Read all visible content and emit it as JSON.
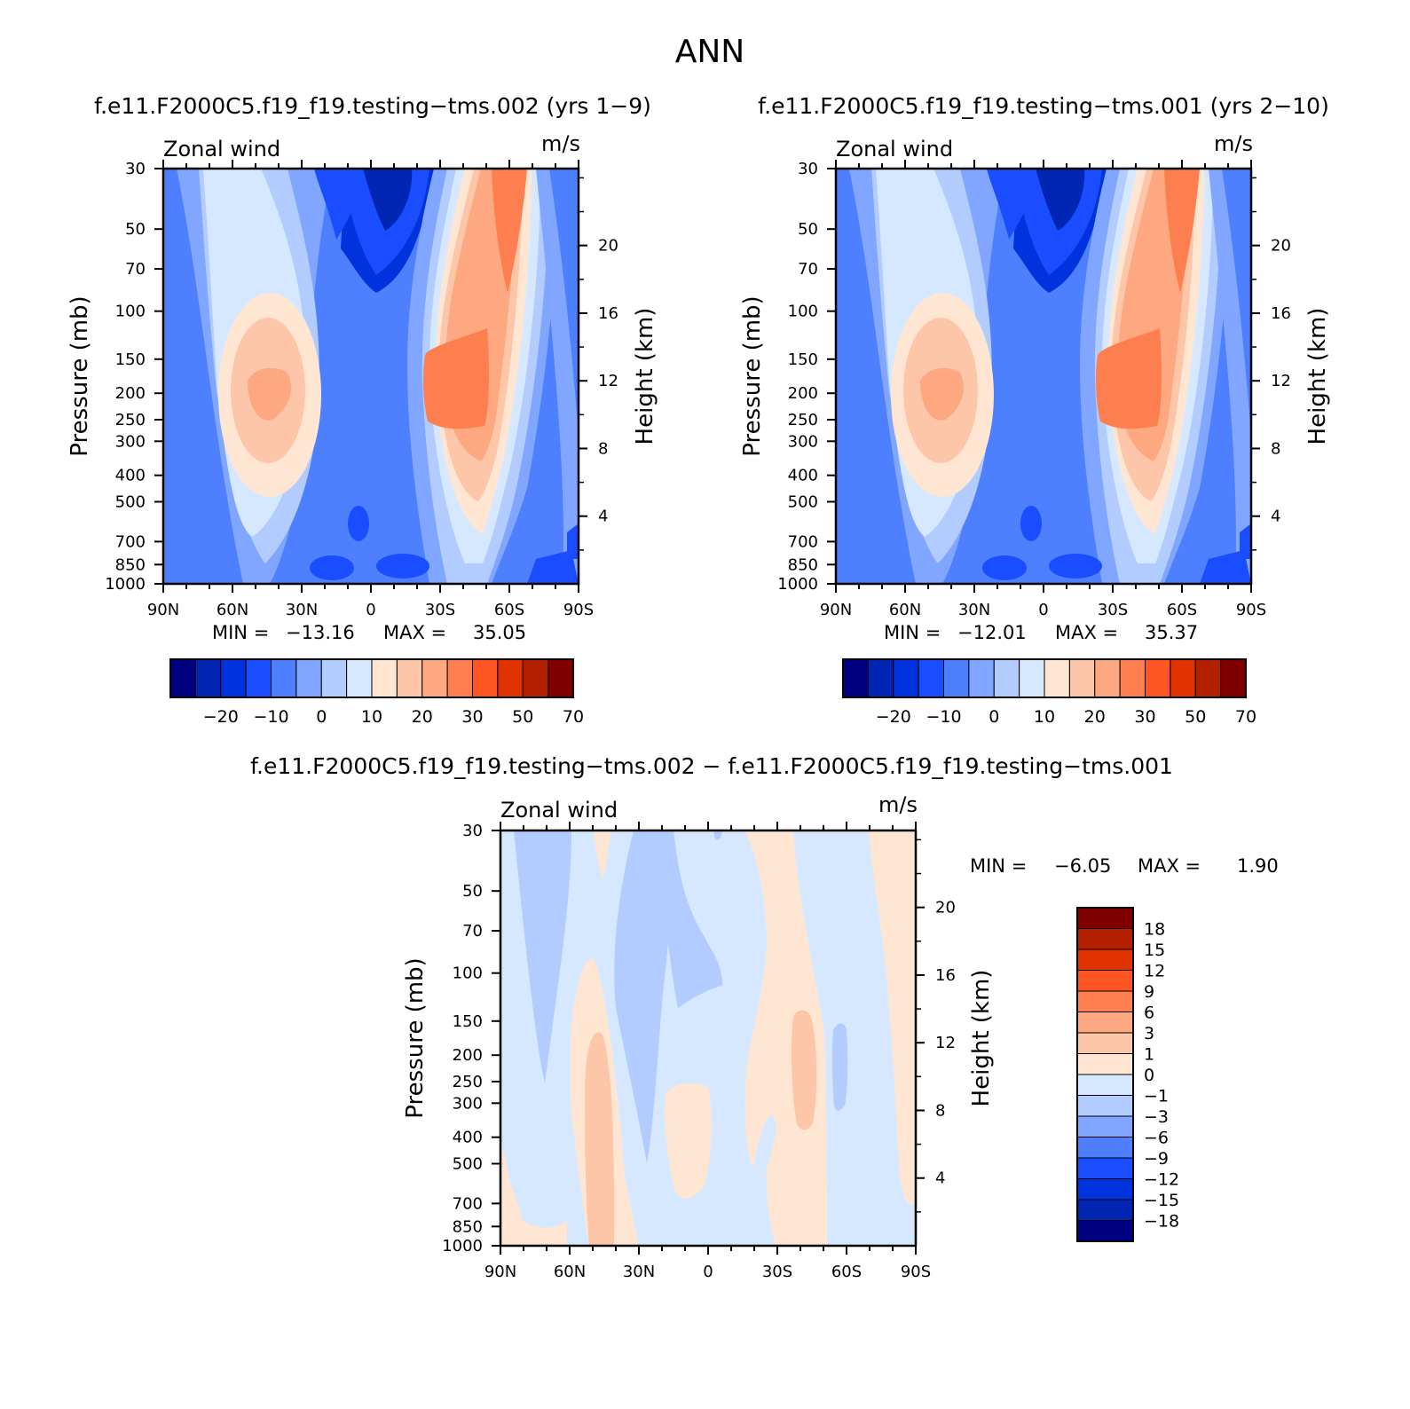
{
  "figure": {
    "title": "ANN"
  },
  "colors": {
    "ctl": [
      "#000080",
      "#0026b3",
      "#0033dd",
      "#1a4dff",
      "#4d7fff",
      "#80a6ff",
      "#b3ccff",
      "#d6e8ff",
      "#ffe6d3",
      "#fdc6a8",
      "#fda880",
      "#fd7f4f",
      "#ff5522",
      "#e03300",
      "#b32000",
      "#800000"
    ],
    "diff": [
      "#000080",
      "#0026b3",
      "#0033dd",
      "#1a4dff",
      "#4d7fff",
      "#80a6ff",
      "#b3ccff",
      "#d6e8ff",
      "#ffe6d3",
      "#fdc6a8",
      "#fda880",
      "#fd7f4f",
      "#ff5522",
      "#e03300",
      "#b32000",
      "#800000"
    ]
  },
  "chart_data": [
    {
      "id": "panel1",
      "type": "contour",
      "title": "f.e11.F2000C5.f19_f19.testing−tms.002 (yrs 1−9)",
      "variable": "Zonal wind",
      "units": "m/s",
      "ylabel": "Pressure (mb)",
      "ylabel_right": "Height (km)",
      "xticks": [
        "90N",
        "60N",
        "30N",
        "0",
        "30S",
        "60S",
        "90S"
      ],
      "yticks": [
        "30",
        "50",
        "70",
        "100",
        "150",
        "200",
        "250",
        "300",
        "400",
        "500",
        "700",
        "850",
        "1000"
      ],
      "yticks_right": [
        "4",
        "8",
        "12",
        "16",
        "20"
      ],
      "stats": {
        "min_label": "MIN =",
        "min": "−13.16",
        "max_label": "MAX =",
        "max": "35.05"
      },
      "colorbar_labels": [
        "−20",
        "−10",
        "0",
        "10",
        "20",
        "30",
        "50",
        "70"
      ]
    },
    {
      "id": "panel2",
      "type": "contour",
      "title": "f.e11.F2000C5.f19_f19.testing−tms.001 (yrs 2−10)",
      "variable": "Zonal wind",
      "units": "m/s",
      "ylabel": "Pressure (mb)",
      "ylabel_right": "Height (km)",
      "xticks": [
        "90N",
        "60N",
        "30N",
        "0",
        "30S",
        "60S",
        "90S"
      ],
      "yticks": [
        "30",
        "50",
        "70",
        "100",
        "150",
        "200",
        "250",
        "300",
        "400",
        "500",
        "700",
        "850",
        "1000"
      ],
      "yticks_right": [
        "4",
        "8",
        "12",
        "16",
        "20"
      ],
      "stats": {
        "min_label": "MIN =",
        "min": "−12.01",
        "max_label": "MAX =",
        "max": "35.37"
      },
      "colorbar_labels": [
        "−20",
        "−10",
        "0",
        "10",
        "20",
        "30",
        "50",
        "70"
      ]
    },
    {
      "id": "panel3",
      "type": "contour",
      "title": "f.e11.F2000C5.f19_f19.testing−tms.002 − f.e11.F2000C5.f19_f19.testing−tms.001",
      "variable": "Zonal wind",
      "units": "m/s",
      "ylabel": "Pressure (mb)",
      "ylabel_right": "Height (km)",
      "xticks": [
        "90N",
        "60N",
        "30N",
        "0",
        "30S",
        "60S",
        "90S"
      ],
      "yticks": [
        "30",
        "50",
        "70",
        "100",
        "150",
        "200",
        "250",
        "300",
        "400",
        "500",
        "700",
        "850",
        "1000"
      ],
      "yticks_right": [
        "4",
        "8",
        "12",
        "16",
        "20"
      ],
      "stats": {
        "min_label": "MIN =",
        "min": "−6.05",
        "max_label": "MAX =",
        "max": "1.90"
      },
      "colorbar_labels": [
        "18",
        "15",
        "12",
        "9",
        "6",
        "3",
        "1",
        "0",
        "−1",
        "−3",
        "−6",
        "−9",
        "−12",
        "−15",
        "−18"
      ]
    }
  ]
}
